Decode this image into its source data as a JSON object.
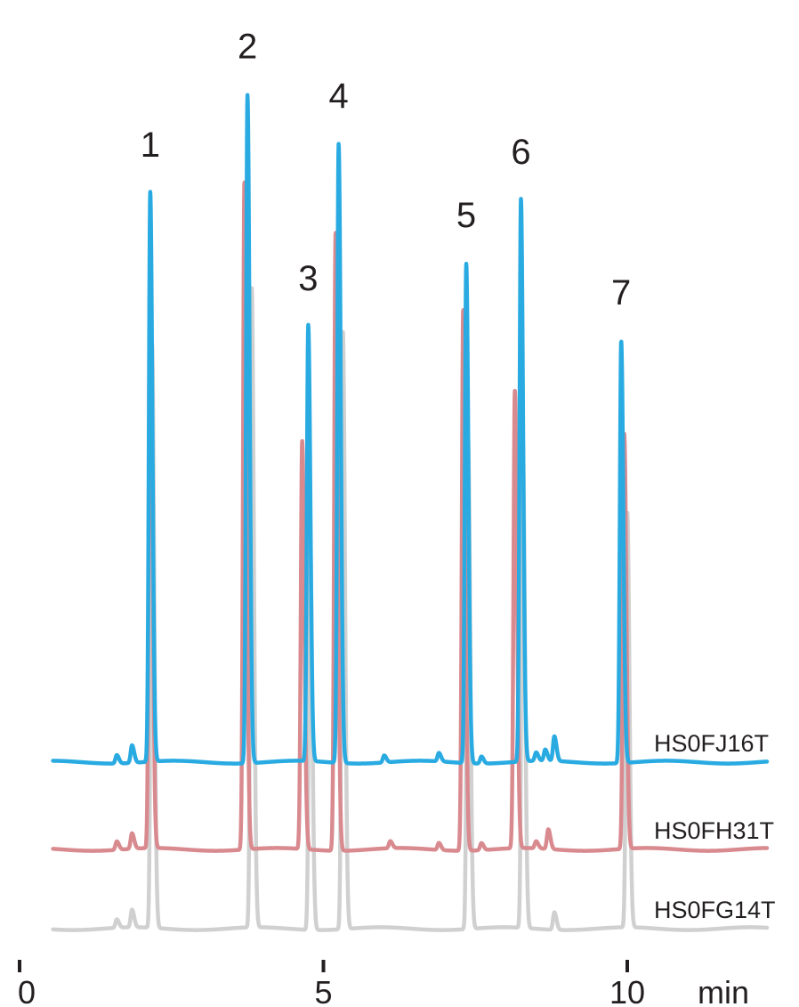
{
  "chart_data": {
    "type": "line",
    "x_unit_label": "min",
    "x_ticks": [
      0,
      5,
      10
    ],
    "xlim": [
      0,
      12.3
    ],
    "grid": false,
    "peak_labels": [
      {
        "label": "1",
        "x": 2.15
      },
      {
        "label": "2",
        "x": 3.75
      },
      {
        "label": "3",
        "x": 4.75
      },
      {
        "label": "4",
        "x": 5.25
      },
      {
        "label": "5",
        "x": 7.35
      },
      {
        "label": "6",
        "x": 8.25
      },
      {
        "label": "7",
        "x": 9.9
      }
    ],
    "series": [
      {
        "name": "HS0FJ16T",
        "color": "#29abe2",
        "peaks": [
          {
            "x": 1.6,
            "h": 0.012
          },
          {
            "x": 1.85,
            "h": 0.025
          },
          {
            "x": 2.15,
            "h": 0.81
          },
          {
            "x": 3.75,
            "h": 0.95
          },
          {
            "x": 4.75,
            "h": 0.62
          },
          {
            "x": 5.25,
            "h": 0.88
          },
          {
            "x": 6.0,
            "h": 0.01
          },
          {
            "x": 6.9,
            "h": 0.012
          },
          {
            "x": 7.35,
            "h": 0.71
          },
          {
            "x": 7.6,
            "h": 0.01
          },
          {
            "x": 8.25,
            "h": 0.8
          },
          {
            "x": 8.5,
            "h": 0.012
          },
          {
            "x": 8.65,
            "h": 0.016
          },
          {
            "x": 8.8,
            "h": 0.035
          },
          {
            "x": 9.9,
            "h": 0.6
          }
        ]
      },
      {
        "name": "HS0FH31T",
        "color": "#d98a8f",
        "peaks": [
          {
            "x": 1.6,
            "h": 0.012
          },
          {
            "x": 1.85,
            "h": 0.022
          },
          {
            "x": 2.15,
            "h": 0.88
          },
          {
            "x": 3.7,
            "h": 0.95
          },
          {
            "x": 4.65,
            "h": 0.58
          },
          {
            "x": 5.2,
            "h": 0.88
          },
          {
            "x": 6.1,
            "h": 0.01
          },
          {
            "x": 6.9,
            "h": 0.01
          },
          {
            "x": 7.3,
            "h": 0.77
          },
          {
            "x": 7.6,
            "h": 0.01
          },
          {
            "x": 8.15,
            "h": 0.65
          },
          {
            "x": 8.5,
            "h": 0.01
          },
          {
            "x": 8.7,
            "h": 0.028
          },
          {
            "x": 9.95,
            "h": 0.59
          }
        ]
      },
      {
        "name": "HS0FG14T",
        "color": "#d0d0d0",
        "peaks": [
          {
            "x": 1.6,
            "h": 0.012
          },
          {
            "x": 1.85,
            "h": 0.025
          },
          {
            "x": 2.18,
            "h": 0.83
          },
          {
            "x": 3.82,
            "h": 0.91
          },
          {
            "x": 4.78,
            "h": 0.56
          },
          {
            "x": 5.32,
            "h": 0.85
          },
          {
            "x": 7.38,
            "h": 0.7
          },
          {
            "x": 8.28,
            "h": 0.7
          },
          {
            "x": 8.8,
            "h": 0.025
          },
          {
            "x": 10.0,
            "h": 0.59
          }
        ]
      }
    ]
  }
}
